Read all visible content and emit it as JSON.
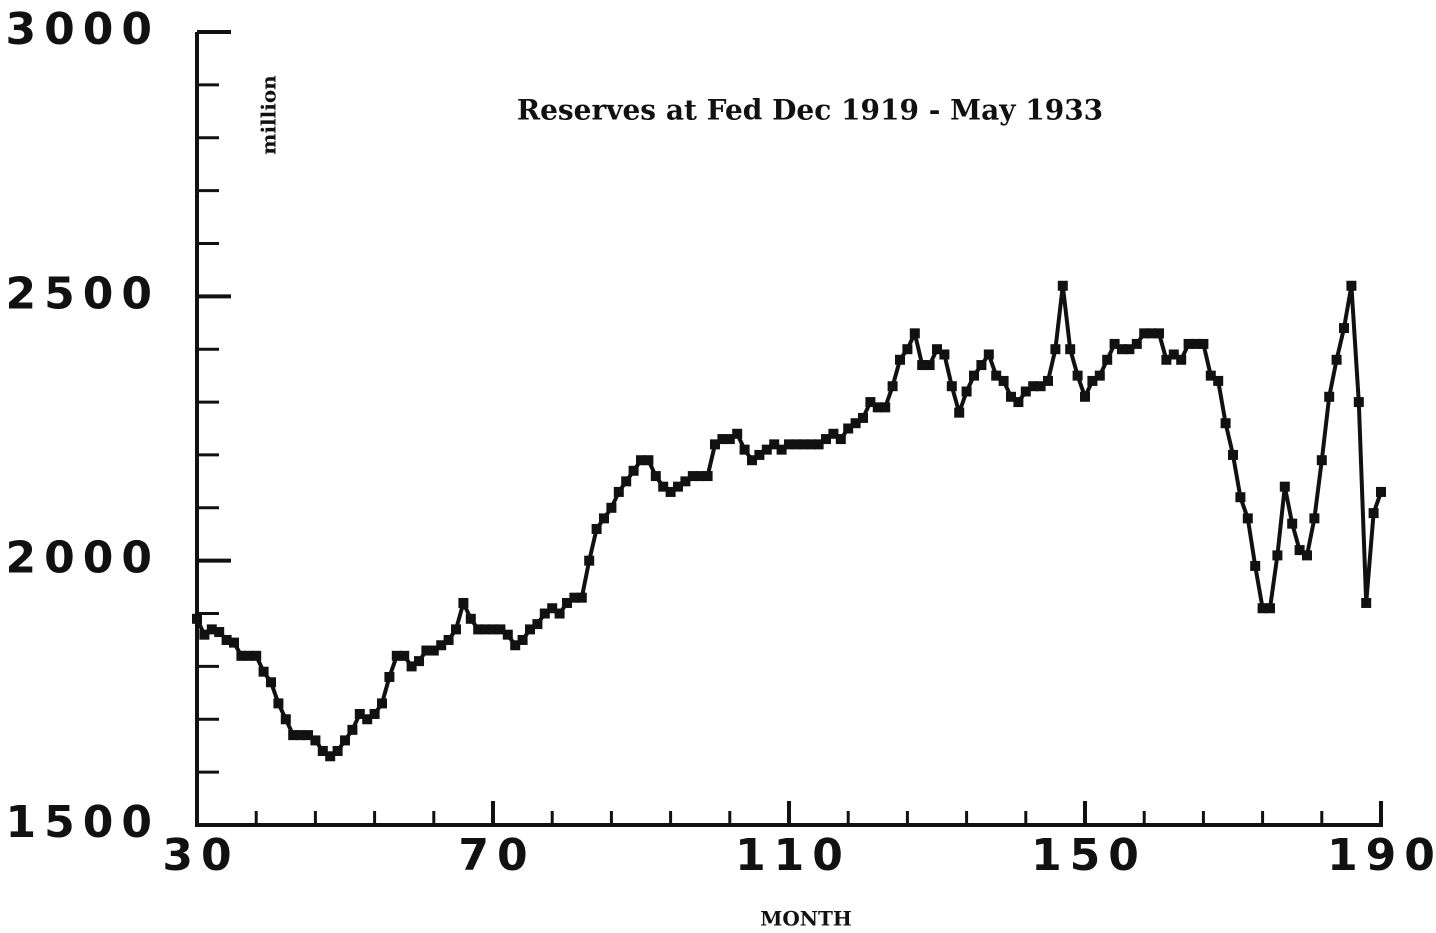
{
  "chart_data": {
    "type": "line",
    "title": "Reserves at Fed Dec 1919 - May 1933",
    "ylabel": "million",
    "xlabel": "MONTH",
    "x": [
      30,
      31,
      32,
      33,
      34,
      35,
      36,
      37,
      38,
      39,
      40,
      41,
      42,
      43,
      44,
      45,
      46,
      47,
      48,
      49,
      50,
      51,
      52,
      53,
      54,
      55,
      56,
      57,
      58,
      59,
      60,
      61,
      62,
      63,
      64,
      65,
      66,
      67,
      68,
      69,
      70,
      71,
      72,
      73,
      74,
      75,
      76,
      77,
      78,
      79,
      80,
      81,
      82,
      83,
      84,
      85,
      86,
      87,
      88,
      89,
      90,
      91,
      92,
      93,
      94,
      95,
      96,
      97,
      98,
      99,
      100,
      101,
      102,
      103,
      104,
      105,
      106,
      107,
      108,
      109,
      110,
      111,
      112,
      113,
      114,
      115,
      116,
      117,
      118,
      119,
      120,
      121,
      122,
      123,
      124,
      125,
      126,
      127,
      128,
      129,
      130,
      131,
      132,
      133,
      134,
      135,
      136,
      137,
      138,
      139,
      140,
      141,
      142,
      143,
      144,
      145,
      146,
      147,
      148,
      149,
      150,
      151,
      152,
      153,
      154,
      155,
      156,
      157,
      158,
      159,
      160,
      161,
      162,
      163,
      164,
      165,
      166,
      167,
      168,
      169,
      170,
      171,
      172,
      173,
      174,
      175,
      176,
      177,
      178,
      179,
      180,
      181,
      182,
      183,
      184,
      185,
      186,
      187,
      188,
      189,
      190
    ],
    "series": [
      {
        "color": "#111111",
        "values": [
          1890,
          1860,
          1870,
          1865,
          1850,
          1845,
          1820,
          1820,
          1820,
          1790,
          1770,
          1730,
          1700,
          1670,
          1670,
          1670,
          1660,
          1640,
          1630,
          1640,
          1660,
          1680,
          1710,
          1700,
          1710,
          1730,
          1780,
          1820,
          1820,
          1800,
          1810,
          1830,
          1830,
          1840,
          1850,
          1870,
          1920,
          1890,
          1870,
          1870,
          1870,
          1870,
          1860,
          1840,
          1850,
          1870,
          1880,
          1900,
          1910,
          1900,
          1920,
          1930,
          1930,
          2000,
          2060,
          2080,
          2100,
          2130,
          2150,
          2170,
          2190,
          2190,
          2160,
          2140,
          2130,
          2140,
          2150,
          2160,
          2160,
          2160,
          2220,
          2230,
          2230,
          2240,
          2210,
          2190,
          2200,
          2210,
          2220,
          2210,
          2220,
          2220,
          2220,
          2220,
          2220,
          2230,
          2240,
          2230,
          2250,
          2260,
          2270,
          2300,
          2290,
          2290,
          2330,
          2380,
          2400,
          2430,
          2370,
          2370,
          2400,
          2390,
          2330,
          2280,
          2320,
          2350,
          2370,
          2390,
          2350,
          2340,
          2310,
          2300,
          2320,
          2330,
          2330,
          2340,
          2400,
          2520,
          2400,
          2350,
          2310,
          2340,
          2350,
          2380,
          2410,
          2400,
          2400,
          2410,
          2430,
          2430,
          2430,
          2380,
          2390,
          2380,
          2410,
          2410,
          2410,
          2350,
          2340,
          2260,
          2200,
          2120,
          2080,
          1990,
          1910,
          1910,
          2010,
          2140,
          2070,
          2020,
          2010,
          2080,
          2190,
          2310,
          2380,
          2440,
          2520,
          2300,
          1920,
          2090,
          2130
        ]
      }
    ],
    "xlim": [
      30,
      190
    ],
    "xticks": [
      30,
      70,
      110,
      150,
      190
    ],
    "xminorticks": [
      38,
      46,
      54,
      62,
      78,
      86,
      94,
      102,
      118,
      126,
      134,
      142,
      158,
      166,
      174,
      182
    ],
    "ylim": [
      1500,
      3000
    ],
    "yticks": [
      1500,
      2000,
      2500,
      3000
    ],
    "yminorticks": [
      1600,
      1700,
      1800,
      1900,
      2100,
      2200,
      2300,
      2400,
      2600,
      2700,
      2800,
      2900
    ],
    "marker": "square"
  }
}
